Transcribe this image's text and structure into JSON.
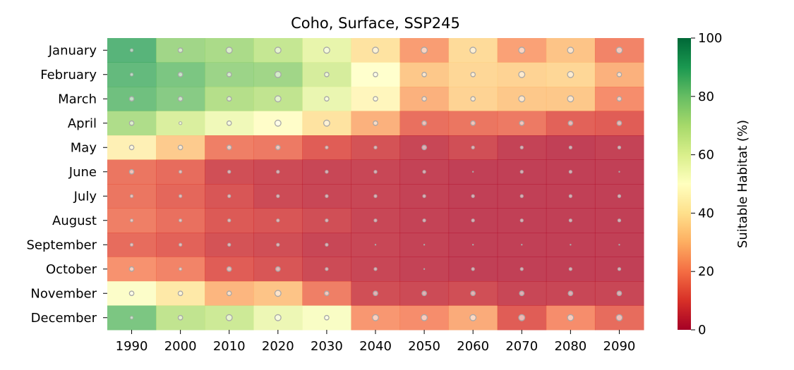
{
  "chart_data": {
    "type": "heatmap",
    "title": "Coho, Surface, SSP245",
    "xlabel": "",
    "ylabel": "",
    "colorbar_label": "Suitable Habitat (%)",
    "colorbar_ticks": [
      0,
      20,
      40,
      60,
      80,
      100
    ],
    "vmin": 0,
    "vmax": 100,
    "colormap": "RdYlGn",
    "x": [
      "1990",
      "2000",
      "2010",
      "2020",
      "2030",
      "2040",
      "2050",
      "2060",
      "2070",
      "2080",
      "2090"
    ],
    "y": [
      "January",
      "February",
      "March",
      "April",
      "May",
      "June",
      "July",
      "August",
      "September",
      "October",
      "November",
      "December"
    ],
    "values": [
      [
        88,
        75,
        73,
        67,
        58,
        39,
        23,
        37,
        24,
        31,
        18
      ],
      [
        86,
        82,
        76,
        75,
        63,
        50,
        32,
        36,
        35,
        36,
        27
      ],
      [
        84,
        80,
        71,
        68,
        57,
        46,
        27,
        35,
        32,
        32,
        20
      ],
      [
        72,
        62,
        55,
        49,
        39,
        27,
        14,
        15,
        16,
        11,
        10
      ],
      [
        44,
        33,
        17,
        16,
        10,
        7,
        4,
        6,
        3,
        2,
        3
      ],
      [
        15,
        13,
        6,
        5,
        4,
        4,
        3,
        2,
        2,
        2,
        2
      ],
      [
        15,
        12,
        8,
        5,
        4,
        4,
        3,
        2,
        2,
        2,
        2
      ],
      [
        17,
        14,
        9,
        8,
        6,
        4,
        3,
        2,
        2,
        2,
        2
      ],
      [
        13,
        11,
        7,
        6,
        4,
        4,
        3,
        2,
        2,
        2,
        2
      ],
      [
        21,
        18,
        10,
        8,
        5,
        4,
        3,
        2,
        2,
        2,
        2
      ],
      [
        51,
        41,
        28,
        31,
        17,
        6,
        5,
        6,
        4,
        4,
        4
      ],
      [
        82,
        68,
        65,
        56,
        52,
        22,
        20,
        26,
        10,
        20,
        13
      ]
    ],
    "marker_sizes": [
      [
        1,
        2,
        3,
        3,
        3,
        3,
        3,
        3,
        3,
        3,
        3
      ],
      [
        1,
        2,
        2,
        3,
        2,
        2,
        2,
        2,
        3,
        3,
        2
      ],
      [
        2,
        2,
        2,
        3,
        2,
        2,
        2,
        2,
        3,
        3,
        2
      ],
      [
        2,
        1,
        2,
        3,
        3,
        2,
        2,
        2,
        2,
        2,
        2
      ],
      [
        2,
        2,
        2,
        2,
        1,
        1,
        2,
        1,
        1,
        1,
        1
      ],
      [
        2,
        1,
        1,
        1,
        1,
        1,
        1,
        0,
        1,
        1,
        0
      ],
      [
        1,
        1,
        1,
        1,
        1,
        1,
        1,
        1,
        1,
        1,
        1
      ],
      [
        1,
        1,
        1,
        1,
        1,
        1,
        1,
        1,
        1,
        1,
        1
      ],
      [
        1,
        1,
        1,
        1,
        1,
        0,
        0,
        0,
        0,
        0,
        0
      ],
      [
        2,
        1,
        2,
        2,
        1,
        1,
        0,
        1,
        1,
        1,
        1
      ],
      [
        2,
        2,
        2,
        3,
        2,
        2,
        2,
        2,
        2,
        2,
        2
      ],
      [
        1,
        2,
        3,
        3,
        2,
        3,
        3,
        3,
        3,
        3,
        3
      ]
    ]
  }
}
